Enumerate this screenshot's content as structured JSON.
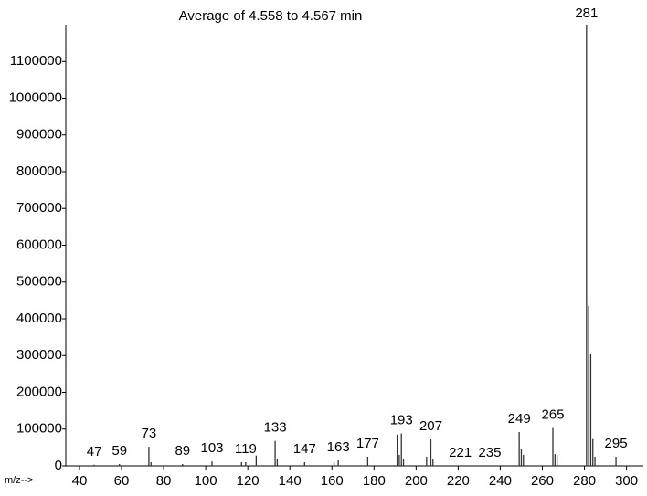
{
  "chart_data": {
    "type": "bar",
    "title": "Average of 4.558 to 4.567 min",
    "x_label": "m/z-->",
    "color": "#333333",
    "x": [
      47,
      59,
      73,
      74,
      89,
      103,
      117,
      119,
      124,
      133,
      134,
      147,
      161,
      163,
      177,
      191,
      192,
      193,
      194,
      205,
      207,
      208,
      249,
      250,
      251,
      265,
      266,
      267,
      281,
      282,
      283,
      284,
      285,
      295
    ],
    "values": [
      3000,
      5000,
      52000,
      10000,
      5000,
      12000,
      10000,
      10000,
      28000,
      68000,
      20000,
      10000,
      10000,
      15000,
      25000,
      85000,
      30000,
      88000,
      20000,
      25000,
      72000,
      20000,
      92000,
      45000,
      30000,
      103000,
      32000,
      30000,
      1200000,
      435000,
      305000,
      73000,
      25000,
      25000
    ],
    "peak_labels": [
      47,
      59,
      73,
      89,
      103,
      119,
      133,
      147,
      163,
      177,
      193,
      207,
      221,
      235,
      249,
      265,
      281,
      295
    ],
    "xlim": [
      33.5,
      308
    ],
    "xticks": [
      40,
      60,
      80,
      100,
      120,
      140,
      160,
      180,
      200,
      220,
      240,
      260,
      280,
      300
    ],
    "ylim": [
      0,
      1200000
    ],
    "yticks": [
      0,
      100000,
      200000,
      300000,
      400000,
      500000,
      600000,
      700000,
      800000,
      900000,
      1000000,
      1100000
    ]
  }
}
